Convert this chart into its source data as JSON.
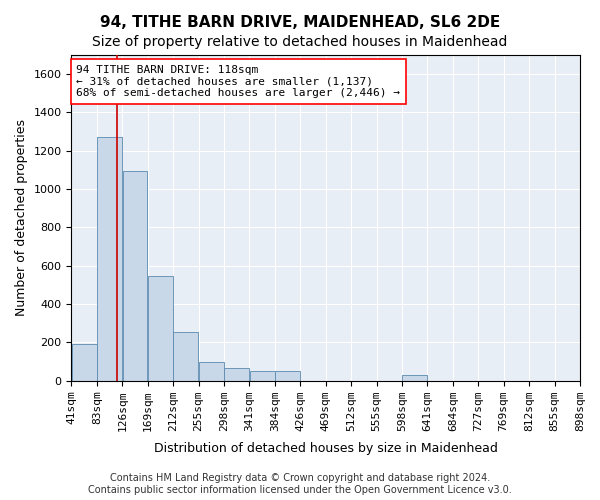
{
  "title": "94, TITHE BARN DRIVE, MAIDENHEAD, SL6 2DE",
  "subtitle": "Size of property relative to detached houses in Maidenhead",
  "xlabel": "Distribution of detached houses by size in Maidenhead",
  "ylabel": "Number of detached properties",
  "footer_line1": "Contains HM Land Registry data © Crown copyright and database right 2024.",
  "footer_line2": "Contains public sector information licensed under the Open Government Licence v3.0.",
  "annotation_line1": "94 TITHE BARN DRIVE: 118sqm",
  "annotation_line2": "← 31% of detached houses are smaller (1,137)",
  "annotation_line3": "68% of semi-detached houses are larger (2,446) →",
  "bar_color": "#c8d8e8",
  "bar_edge_color": "#5a8ab0",
  "vline_color": "#cc0000",
  "vline_x": 118,
  "bin_edges": [
    41,
    84,
    127,
    170,
    213,
    256,
    299,
    342,
    385,
    428,
    471,
    514,
    557,
    600,
    643,
    686,
    729,
    772,
    815,
    858,
    901
  ],
  "bin_labels": [
    "41sqm",
    "83sqm",
    "126sqm",
    "169sqm",
    "212sqm",
    "255sqm",
    "298sqm",
    "341sqm",
    "384sqm",
    "426sqm",
    "469sqm",
    "512sqm",
    "555sqm",
    "598sqm",
    "641sqm",
    "684sqm",
    "727sqm",
    "769sqm",
    "812sqm",
    "855sqm",
    "898sqm"
  ],
  "bar_heights": [
    190,
    1270,
    1095,
    545,
    255,
    100,
    65,
    50,
    50,
    0,
    0,
    0,
    0,
    30,
    0,
    0,
    0,
    0,
    0,
    0
  ],
  "ylim": [
    0,
    1700
  ],
  "yticks": [
    0,
    200,
    400,
    600,
    800,
    1000,
    1200,
    1400,
    1600
  ],
  "plot_bg_color": "#e8eef5",
  "title_fontsize": 11,
  "subtitle_fontsize": 10,
  "axis_label_fontsize": 9,
  "tick_fontsize": 8,
  "annotation_fontsize": 8,
  "footer_fontsize": 7
}
